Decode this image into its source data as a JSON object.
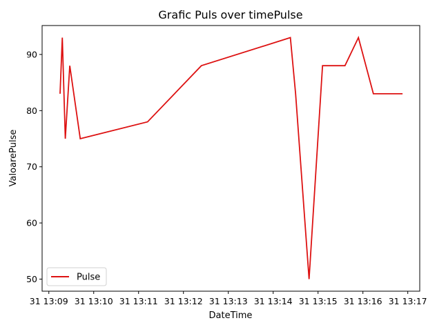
{
  "chart_data": {
    "type": "line",
    "title": "Grafic Puls over timePulse",
    "xlabel": "DateTime",
    "ylabel": "ValoarePulse",
    "xlim": [
      "13:08:51",
      "13:17:16"
    ],
    "ylim": [
      47.85,
      95.15
    ],
    "x_ticks": [
      "13:09",
      "13:10",
      "13:11",
      "13:12",
      "13:13",
      "13:14",
      "13:15",
      "13:16",
      "13:17"
    ],
    "x_tick_labels": [
      "31 13:09",
      "31 13:10",
      "31 13:11",
      "31 13:12",
      "31 13:13",
      "31 13:14",
      "31 13:15",
      "31 13:16",
      "31 13:17"
    ],
    "y_ticks": [
      50,
      60,
      70,
      80,
      90
    ],
    "y_tick_labels": [
      "50",
      "60",
      "70",
      "80",
      "90"
    ],
    "grid": false,
    "legend_position": "lower-left",
    "series": [
      {
        "name": "Pulse",
        "color": "#dd1111",
        "x": [
          "13:09:15",
          "13:09:18",
          "13:09:22",
          "13:09:28",
          "13:09:42",
          "13:11:12",
          "13:12:24",
          "13:14:23",
          "13:14:30",
          "13:14:48",
          "13:15:06",
          "13:15:36",
          "13:15:54",
          "13:16:14",
          "13:16:53"
        ],
        "values": [
          83,
          93,
          75,
          88,
          75,
          78,
          88,
          93,
          83,
          50,
          88,
          88,
          93,
          83,
          83
        ]
      }
    ]
  }
}
